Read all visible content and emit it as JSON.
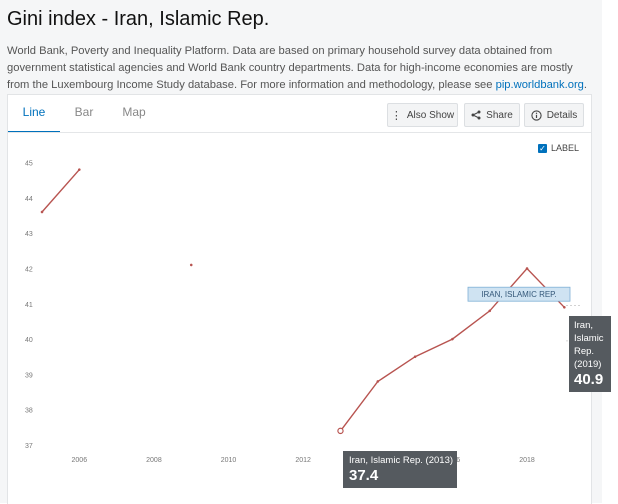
{
  "page": {
    "title": "Gini index - Iran, Islamic Rep.",
    "description": "World Bank, Poverty and Inequality Platform. Data are based on primary household survey data obtained from government statistical agencies and World Bank country departments. Data for high-income economies are mostly from the Luxembourg Income Study database. For more information and methodology, please see ",
    "link_text": "pip.worldbank.org",
    "description_end": "."
  },
  "tabs": [
    {
      "label": "Line",
      "active": true
    },
    {
      "label": "Bar",
      "active": false
    },
    {
      "label": "Map",
      "active": false
    }
  ],
  "toolbar": {
    "also_show": "Also Show",
    "share": "Share",
    "details": "Details"
  },
  "label_toggle": {
    "label": "LABEL",
    "checked": true
  },
  "series_label": "IRAN, ISLAMIC REP.",
  "tooltips": {
    "left": {
      "text": "Iran, Islamic Rep. (2013)",
      "value": "37.4"
    },
    "right": {
      "lines": [
        "Iran,",
        "Islamic",
        "Rep.",
        "(2019)"
      ],
      "value": "40.9"
    }
  },
  "colors": {
    "line": "#b85450",
    "accent": "#0071bc",
    "label_bg": "#cfe3f2"
  },
  "chart_data": {
    "type": "line",
    "title": "",
    "xlabel": "",
    "ylabel": "",
    "xlim": [
      2005,
      2019.5
    ],
    "ylim": [
      37,
      45.3
    ],
    "xticks": [
      "2006",
      "2008",
      "2010",
      "2012",
      "2014",
      "2016",
      "2018"
    ],
    "yticks": [
      "37",
      "38",
      "39",
      "40",
      "41",
      "42",
      "43",
      "44",
      "45"
    ],
    "grid": false,
    "series": [
      {
        "segments": [
          [
            {
              "x": 2005,
              "y": 43.6
            },
            {
              "x": 2006,
              "y": 44.8
            }
          ],
          [
            {
              "x": 2009,
              "y": 42.1
            }
          ],
          [
            {
              "x": 2013,
              "y": 37.4
            },
            {
              "x": 2014,
              "y": 38.8
            },
            {
              "x": 2015,
              "y": 39.5
            },
            {
              "x": 2016,
              "y": 40.0
            },
            {
              "x": 2017,
              "y": 40.8
            },
            {
              "x": 2018,
              "y": 42.0
            },
            {
              "x": 2019,
              "y": 40.9
            }
          ]
        ]
      }
    ]
  }
}
